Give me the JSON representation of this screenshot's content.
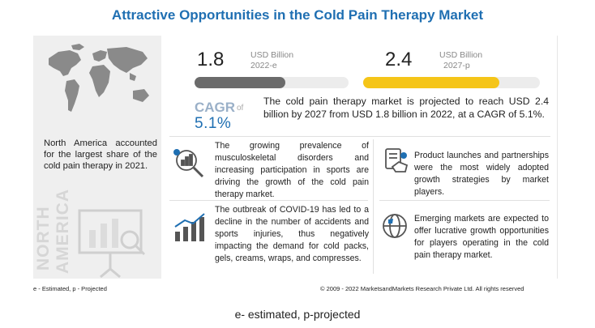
{
  "title": "Attractive Opportunities in the Cold Pain Therapy Market",
  "left_panel": {
    "region_text": "North America accounted for the largest share of the cold pain therapy in 2021.",
    "region_word1": "NORTH",
    "region_word2": "AMERICA"
  },
  "market": {
    "value_2022": "1.8",
    "unit_2022": "USD Billion",
    "year_2022": "2022-e",
    "value_2027": "2.4",
    "unit_2027": "USD Billion",
    "year_2027": "2027-p",
    "bar_2022_color": "#6b6b6b",
    "bar_2027_color": "#f5c518"
  },
  "cagr": {
    "label": "CAGR",
    "of": "of",
    "value": "5.1%"
  },
  "summary": "The cold pain therapy market is projected to reach USD 2.4 billion by 2027 from USD 1.8 billion in 2022, at a CAGR of 5.1%.",
  "points": {
    "p1": "The growing prevalence of musculoskeletal disorders and increasing participation in sports are driving the growth of the cold pain therapy market.",
    "p2": "The outbreak of COVID-19 has led to a decline in the number of accidents and sports injuries, thus negatively impacting the demand for cold packs, gels, creams, wraps, and compresses.",
    "p3": "Product launches and partnerships were the most widely adopted growth strategies by market players.",
    "p4": "Emerging markets are expected to offer lucrative growth opportunities for players operating in the cold pain therapy market."
  },
  "icons": {
    "map": "world-map-icon",
    "analysis": "analysis-icon",
    "chart": "growth-chart-icon",
    "handshake": "handshake-icon",
    "globe": "globe-icon",
    "presentation": "presentation-icon"
  },
  "footer": {
    "legend": "e - Estimated, p - Projected",
    "copyright": "© 2009 - 2022 MarketsandMarkets Research Private Ltd. All rights reserved"
  },
  "caption": "e- estimated, p-projected"
}
